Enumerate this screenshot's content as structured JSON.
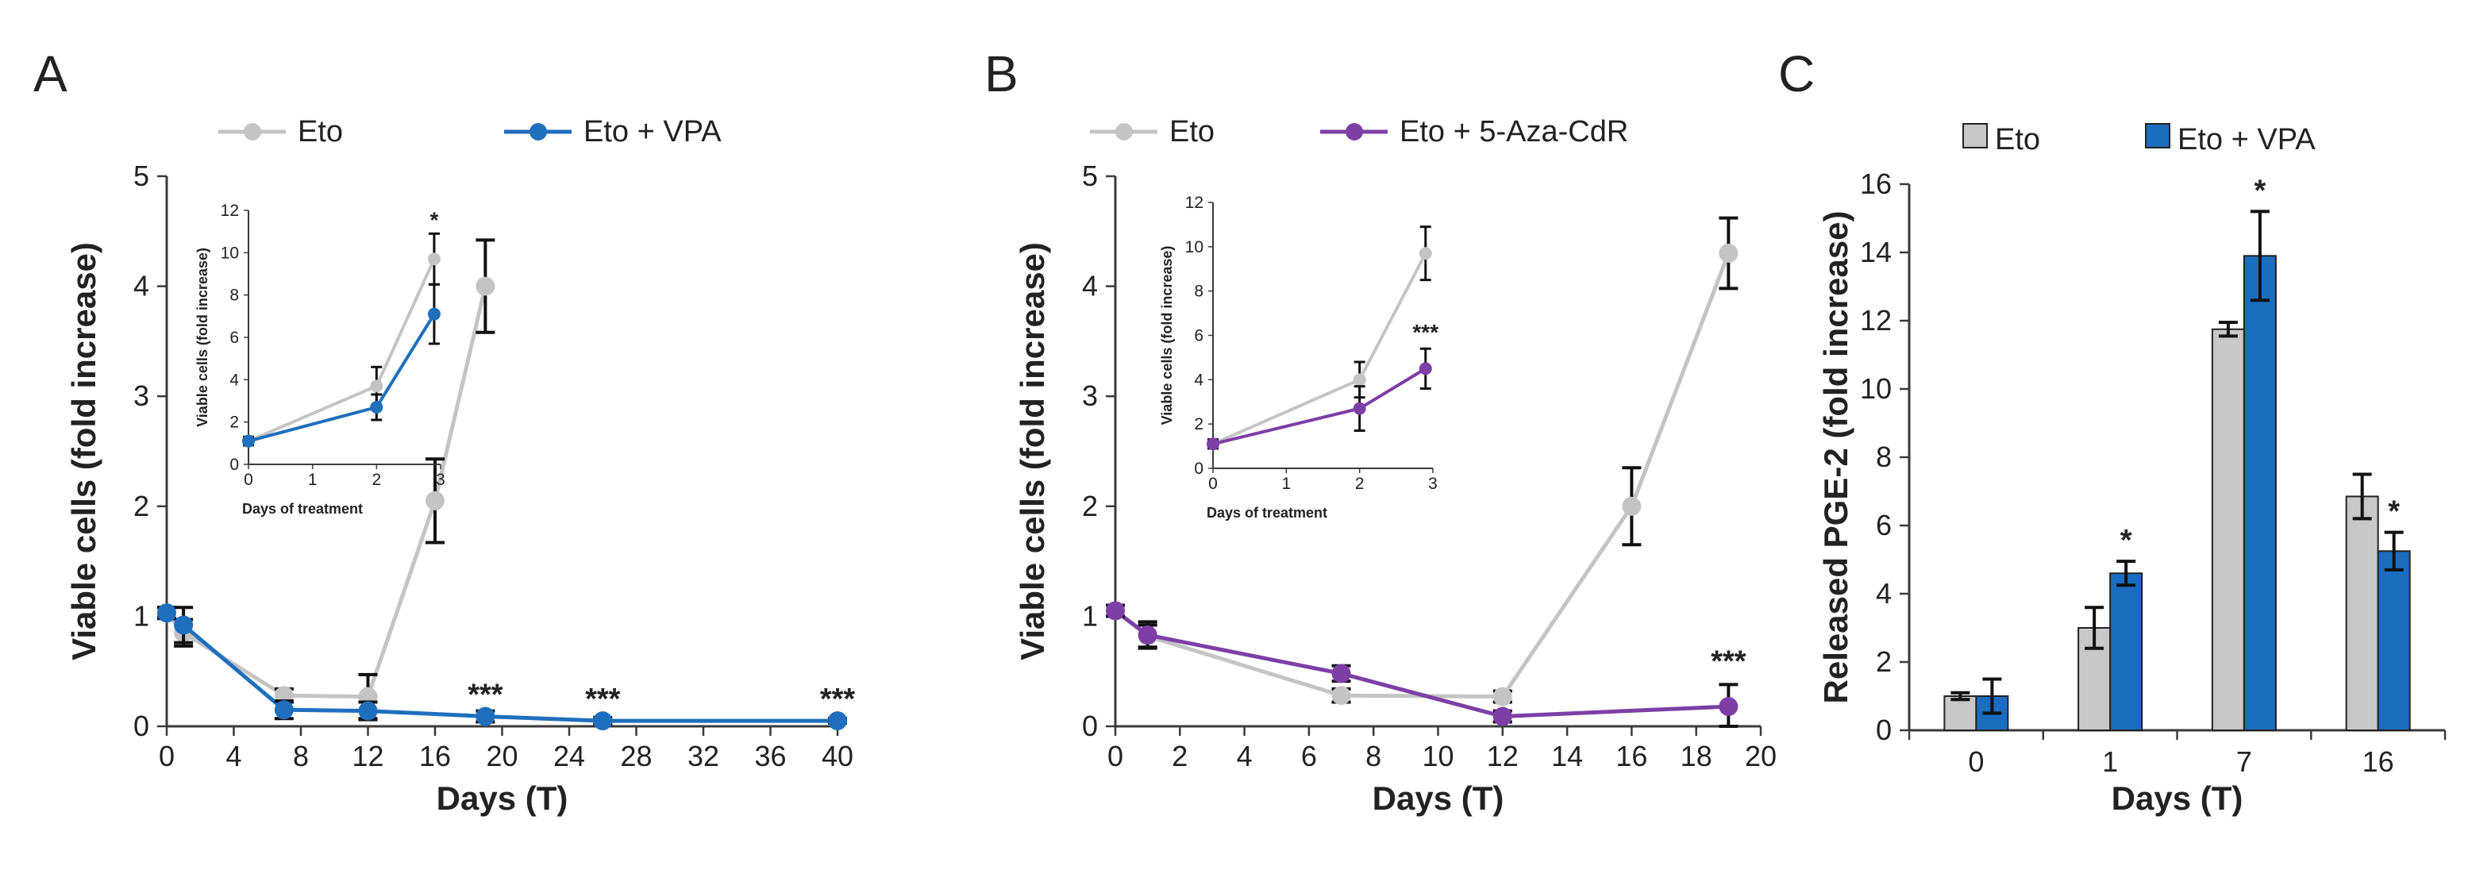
{
  "colors": {
    "eto": "#c4c4c4",
    "vpa": "#1f6fbd",
    "aza": "#7d3fa6",
    "bar_eto": "#c8c8c8",
    "bar_vpa": "#1b6dbf",
    "axis": "#3a3a3a"
  },
  "chart_data": [
    {
      "panel": "A",
      "type": "line",
      "xlabel": "Days (T)",
      "ylabel": "Viable cells (fold increase)",
      "xlim": [
        0,
        40
      ],
      "ylim": [
        0,
        5
      ],
      "xticks": [
        "0",
        "4",
        "8",
        "12",
        "16",
        "20",
        "24",
        "28",
        "32",
        "36",
        "40"
      ],
      "yticks": [
        "0",
        "1",
        "2",
        "3",
        "4",
        "5"
      ],
      "series": [
        {
          "name": "Eto",
          "color": "eto",
          "points": [
            [
              0,
              1.03
            ],
            [
              1,
              0.85
            ],
            [
              7,
              0.28
            ],
            [
              12,
              0.27
            ],
            [
              16,
              2.05
            ],
            [
              19,
              4.0
            ]
          ],
          "err": [
            0.05,
            0.12,
            0.06,
            0.2,
            0.38,
            0.42
          ]
        },
        {
          "name": "Eto + VPA",
          "color": "vpa",
          "points": [
            [
              0,
              1.03
            ],
            [
              1,
              0.92
            ],
            [
              7,
              0.15
            ],
            [
              12,
              0.14
            ],
            [
              19,
              0.09
            ],
            [
              26,
              0.05
            ],
            [
              40,
              0.05
            ]
          ],
          "err": [
            0.05,
            0.16,
            0.08,
            0.08,
            0.05,
            0.03,
            0.02
          ]
        }
      ],
      "annotations": [
        {
          "x": 19,
          "y": 0.2,
          "text": "***"
        },
        {
          "x": 26,
          "y": 0.16,
          "text": "***"
        },
        {
          "x": 40,
          "y": 0.16,
          "text": "***"
        }
      ],
      "inset": {
        "xlabel": "Days of treatment",
        "ylabel": "Viable cells (fold increase)",
        "xlim": [
          0,
          3
        ],
        "ylim": [
          0,
          12
        ],
        "xticks": [
          "0",
          "1",
          "2",
          "3"
        ],
        "yticks": [
          "0",
          "2",
          "4",
          "6",
          "8",
          "10",
          "12"
        ],
        "series": [
          {
            "name": "Eto",
            "color": "eto",
            "points": [
              [
                0,
                1.1
              ],
              [
                2,
                3.7
              ],
              [
                2.9,
                9.7
              ]
            ],
            "err": [
              0.2,
              0.9,
              1.2
            ]
          },
          {
            "name": "Eto + VPA",
            "color": "vpa",
            "points": [
              [
                0,
                1.1
              ],
              [
                2,
                2.7
              ],
              [
                2.9,
                7.1
              ]
            ],
            "err": [
              0.2,
              0.6,
              1.4
            ]
          }
        ],
        "annotations": [
          {
            "x": 2.9,
            "y": 11.2,
            "text": "*"
          }
        ]
      }
    },
    {
      "panel": "B",
      "type": "line",
      "xlabel": "Days (T)",
      "ylabel": "Viable cells (fold increase)",
      "xlim": [
        0,
        20
      ],
      "ylim": [
        0,
        5
      ],
      "xticks": [
        "0",
        "2",
        "4",
        "6",
        "8",
        "10",
        "12",
        "14",
        "16",
        "18",
        "20"
      ],
      "yticks": [
        "0",
        "1",
        "2",
        "3",
        "4",
        "5"
      ],
      "series": [
        {
          "name": "Eto",
          "color": "eto",
          "points": [
            [
              0,
              1.05
            ],
            [
              1,
              0.82
            ],
            [
              7,
              0.28
            ],
            [
              12,
              0.27
            ],
            [
              16,
              2.0
            ],
            [
              19,
              4.3
            ]
          ],
          "err": [
            0.05,
            0.1,
            0.06,
            0.05,
            0.35,
            0.32
          ]
        },
        {
          "name": "Eto + 5-Aza-CdR",
          "color": "aza",
          "points": [
            [
              0,
              1.05
            ],
            [
              1,
              0.83
            ],
            [
              7,
              0.48
            ],
            [
              12,
              0.09
            ],
            [
              19,
              0.18
            ]
          ],
          "err": [
            0.05,
            0.12,
            0.07,
            0.05,
            0.2
          ]
        }
      ],
      "annotations": [
        {
          "x": 19,
          "y": 0.5,
          "text": "***"
        }
      ],
      "inset": {
        "xlabel": "Days of treatment",
        "ylabel": "Viable cells (fold increase)",
        "xlim": [
          0,
          3
        ],
        "ylim": [
          0,
          12
        ],
        "xticks": [
          "0",
          "1",
          "2",
          "3"
        ],
        "yticks": [
          "0",
          "2",
          "4",
          "6",
          "8",
          "10",
          "12"
        ],
        "series": [
          {
            "name": "Eto",
            "color": "eto",
            "points": [
              [
                0,
                1.1
              ],
              [
                2,
                4.0
              ],
              [
                2.9,
                9.7
              ]
            ],
            "err": [
              0.2,
              0.8,
              1.2
            ]
          },
          {
            "name": "Eto + 5-Aza-CdR",
            "color": "aza",
            "points": [
              [
                0,
                1.1
              ],
              [
                2,
                2.7
              ],
              [
                2.9,
                4.5
              ]
            ],
            "err": [
              0.2,
              1.0,
              0.9
            ]
          }
        ],
        "annotations": [
          {
            "x": 2.9,
            "y": 5.8,
            "text": "***"
          }
        ]
      }
    },
    {
      "panel": "C",
      "type": "bar",
      "xlabel": "Days (T)",
      "ylabel": "Released PGE-2 (fold increase)",
      "ylim": [
        0,
        16
      ],
      "categories": [
        "0",
        "1",
        "7",
        "16"
      ],
      "yticks": [
        "0",
        "2",
        "4",
        "6",
        "8",
        "10",
        "12",
        "14",
        "16"
      ],
      "series": [
        {
          "name": "Eto",
          "color": "bar_eto",
          "values": [
            1.0,
            3.0,
            11.75,
            6.85
          ],
          "err": [
            0.1,
            0.6,
            0.2,
            0.65
          ]
        },
        {
          "name": "Eto + VPA",
          "color": "bar_vpa",
          "values": [
            1.0,
            4.6,
            13.9,
            5.25
          ],
          "err": [
            0.5,
            0.35,
            1.3,
            0.55
          ]
        }
      ],
      "annotations": [
        {
          "category": 1,
          "series": 1,
          "text": "*"
        },
        {
          "category": 2,
          "series": 1,
          "text": "*"
        },
        {
          "category": 3,
          "series": 1,
          "text": "*"
        }
      ]
    }
  ]
}
